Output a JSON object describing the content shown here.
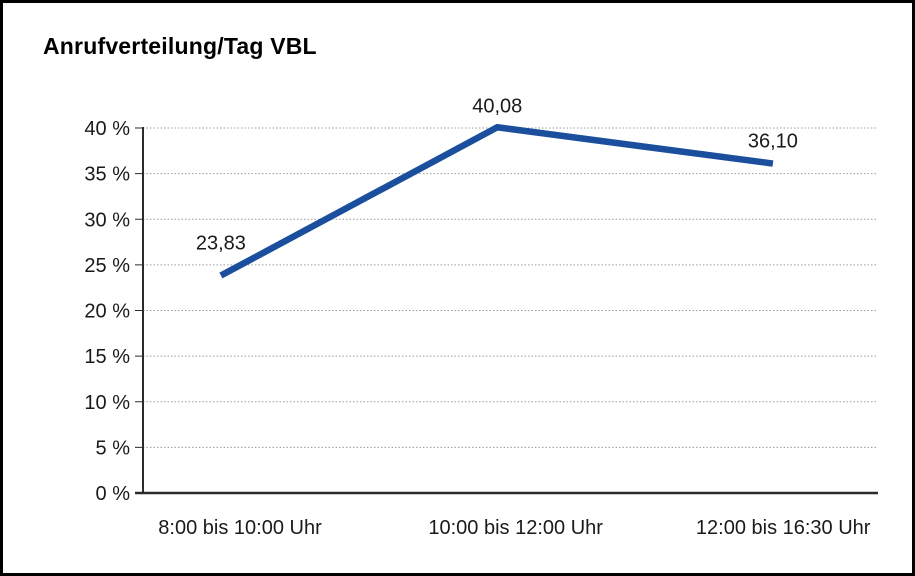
{
  "frame": {
    "background": "#ffffff",
    "border_color": "#000000"
  },
  "chart_data": {
    "type": "line",
    "title": "Anrufverteilung/Tag VBL",
    "categories": [
      "8:00 bis 10:00 Uhr",
      "10:00 bis 12:00 Uhr",
      "12:00 bis 16:30 Uhr"
    ],
    "values": [
      23.83,
      40.08,
      36.1
    ],
    "value_labels": [
      "23,83",
      "40,08",
      "36,10"
    ],
    "xlabel": "",
    "ylabel": "",
    "ylim": [
      0,
      40
    ],
    "ytick_step": 5,
    "ytick_labels": [
      "0 %",
      "5 %",
      "10 %",
      "15 %",
      "20 %",
      "25 %",
      "30 %",
      "35 %",
      "40 %"
    ],
    "grid": "horizontal-dotted",
    "legend": "none",
    "line_color": "#1b4f9e",
    "gridline_color": "#999999",
    "axis_color": "#2b2b2b",
    "text_color": "#1a1a1a"
  }
}
